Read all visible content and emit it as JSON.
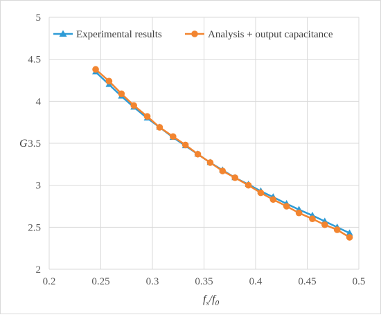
{
  "chart_data": {
    "type": "line",
    "xlabel": "fs/f0",
    "ylabel": "G",
    "xlim": [
      0.2,
      0.5
    ],
    "ylim": [
      2,
      5
    ],
    "x_ticks": [
      0.2,
      0.25,
      0.3,
      0.35,
      0.4,
      0.45,
      0.5
    ],
    "y_ticks": [
      2,
      2.5,
      3,
      3.5,
      4,
      4.5,
      5
    ],
    "grid": true,
    "legend_position": "top",
    "series": [
      {
        "name": "Experimental results",
        "color": "#2e9bd6",
        "marker": "triangle",
        "x": [
          0.245,
          0.258,
          0.27,
          0.282,
          0.295,
          0.307,
          0.32,
          0.332,
          0.344,
          0.356,
          0.368,
          0.38,
          0.393,
          0.405,
          0.417,
          0.43,
          0.442,
          0.455,
          0.467,
          0.479,
          0.491
        ],
        "y": [
          4.35,
          4.2,
          4.06,
          3.93,
          3.8,
          3.69,
          3.57,
          3.47,
          3.37,
          3.27,
          3.18,
          3.09,
          3.01,
          2.93,
          2.86,
          2.78,
          2.71,
          2.64,
          2.57,
          2.5,
          2.43
        ]
      },
      {
        "name": "Analysis + output capacitance",
        "color": "#f28530",
        "marker": "circle",
        "x": [
          0.245,
          0.258,
          0.27,
          0.282,
          0.295,
          0.307,
          0.32,
          0.332,
          0.344,
          0.356,
          0.368,
          0.38,
          0.393,
          0.405,
          0.417,
          0.43,
          0.442,
          0.455,
          0.467,
          0.479,
          0.491
        ],
        "y": [
          4.38,
          4.24,
          4.09,
          3.95,
          3.82,
          3.69,
          3.58,
          3.48,
          3.37,
          3.27,
          3.17,
          3.09,
          3.0,
          2.91,
          2.83,
          2.75,
          2.67,
          2.6,
          2.53,
          2.47,
          2.38
        ]
      }
    ]
  }
}
